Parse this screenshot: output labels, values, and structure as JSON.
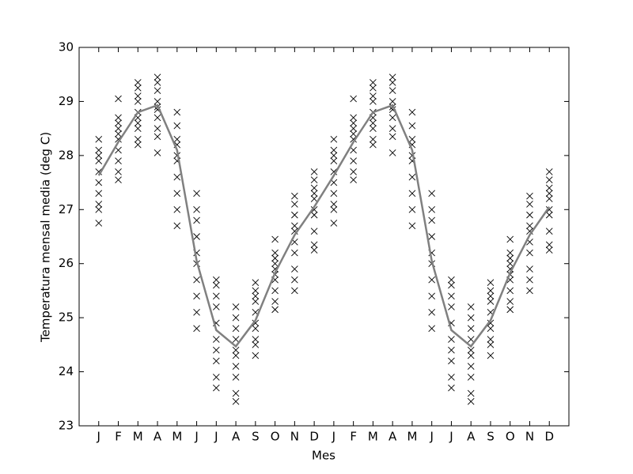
{
  "chart_data": {
    "type": "scatter",
    "x_label": "Mes",
    "y_label": "Temperatura mensal media (deg C)",
    "categories": [
      "J",
      "F",
      "M",
      "A",
      "M",
      "J",
      "J",
      "A",
      "S",
      "O",
      "N",
      "D",
      "J",
      "F",
      "M",
      "A",
      "M",
      "J",
      "J",
      "A",
      "S",
      "O",
      "N",
      "D"
    ],
    "values": [
      [
        26.75,
        27.0,
        27.1,
        27.3,
        27.5,
        27.7,
        27.9,
        28.0,
        28.1,
        28.3
      ],
      [
        27.55,
        27.7,
        27.9,
        28.1,
        28.3,
        28.4,
        28.5,
        28.6,
        28.7,
        29.05
      ],
      [
        28.2,
        28.3,
        28.5,
        28.6,
        28.7,
        28.8,
        29.0,
        29.1,
        29.25,
        29.35
      ],
      [
        28.05,
        28.35,
        28.5,
        28.7,
        28.85,
        28.9,
        29.0,
        29.2,
        29.35,
        29.45
      ],
      [
        26.7,
        27.0,
        27.3,
        27.6,
        27.9,
        28.0,
        28.2,
        28.3,
        28.55,
        28.8
      ],
      [
        24.8,
        25.1,
        25.4,
        25.7,
        26.0,
        26.2,
        26.5,
        26.8,
        27.0,
        27.3
      ],
      [
        23.7,
        23.9,
        24.2,
        24.4,
        24.6,
        24.9,
        25.2,
        25.4,
        25.6,
        25.7
      ],
      [
        23.45,
        23.6,
        23.9,
        24.1,
        24.3,
        24.4,
        24.6,
        24.8,
        25.0,
        25.2
      ],
      [
        24.3,
        24.5,
        24.6,
        24.8,
        24.9,
        25.1,
        25.3,
        25.4,
        25.5,
        25.65
      ],
      [
        25.15,
        25.3,
        25.5,
        25.7,
        25.8,
        25.9,
        26.0,
        26.1,
        26.2,
        26.45
      ],
      [
        25.5,
        25.7,
        25.9,
        26.2,
        26.4,
        26.6,
        26.7,
        26.9,
        27.1,
        27.25
      ],
      [
        26.25,
        26.35,
        26.6,
        26.9,
        27.0,
        27.2,
        27.3,
        27.4,
        27.55,
        27.7
      ],
      [
        26.75,
        27.0,
        27.1,
        27.3,
        27.5,
        27.7,
        27.9,
        28.0,
        28.1,
        28.3
      ],
      [
        27.55,
        27.7,
        27.9,
        28.1,
        28.3,
        28.4,
        28.5,
        28.6,
        28.7,
        29.05
      ],
      [
        28.2,
        28.3,
        28.5,
        28.6,
        28.7,
        28.8,
        29.0,
        29.1,
        29.25,
        29.35
      ],
      [
        28.05,
        28.35,
        28.5,
        28.7,
        28.85,
        28.9,
        29.0,
        29.2,
        29.35,
        29.45
      ],
      [
        26.7,
        27.0,
        27.3,
        27.6,
        27.9,
        28.0,
        28.2,
        28.3,
        28.55,
        28.8
      ],
      [
        24.8,
        25.1,
        25.4,
        25.7,
        26.0,
        26.2,
        26.5,
        26.8,
        27.0,
        27.3
      ],
      [
        23.7,
        23.9,
        24.2,
        24.4,
        24.6,
        24.9,
        25.2,
        25.4,
        25.6,
        25.7
      ],
      [
        23.45,
        23.6,
        23.9,
        24.1,
        24.3,
        24.4,
        24.6,
        24.8,
        25.0,
        25.2
      ],
      [
        24.3,
        24.5,
        24.6,
        24.8,
        24.9,
        25.1,
        25.3,
        25.4,
        25.5,
        25.65
      ],
      [
        25.15,
        25.3,
        25.5,
        25.7,
        25.8,
        25.9,
        26.0,
        26.1,
        26.2,
        26.45
      ],
      [
        25.5,
        25.7,
        25.9,
        26.2,
        26.4,
        26.6,
        26.7,
        26.9,
        27.1,
        27.25
      ],
      [
        26.25,
        26.35,
        26.6,
        26.9,
        27.0,
        27.2,
        27.3,
        27.4,
        27.55,
        27.7
      ]
    ],
    "marker_color": "#000000",
    "line_values": [
      27.63,
      28.25,
      28.8,
      28.93,
      28.1,
      26.05,
      24.77,
      24.47,
      24.95,
      25.83,
      26.53,
      27.05,
      27.63,
      28.25,
      28.8,
      28.93,
      28.1,
      26.05,
      24.77,
      24.47,
      24.95,
      25.83,
      26.53,
      27.05
    ],
    "line_color": "#808080",
    "ylim": [
      23,
      30
    ],
    "yticks": [
      23,
      24,
      25,
      26,
      27,
      28,
      29,
      30
    ],
    "grid": false
  }
}
